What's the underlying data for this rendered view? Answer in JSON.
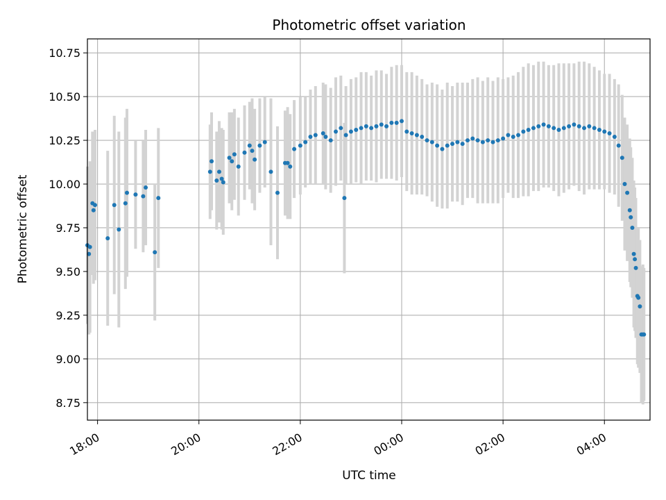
{
  "chart_data": {
    "type": "scatter",
    "title": "Photometric offset variation",
    "xlabel": "UTC time",
    "ylabel": "Photometric offset",
    "x_unit": "hours since 00:00 UTC (negative = previous day)",
    "xlim": [
      -6.2,
      4.9
    ],
    "ylim": [
      8.65,
      10.83
    ],
    "grid": true,
    "x_ticks": [
      {
        "value": -6,
        "label": "18:00"
      },
      {
        "value": -4,
        "label": "20:00"
      },
      {
        "value": -2,
        "label": "22:00"
      },
      {
        "value": 0,
        "label": "00:00"
      },
      {
        "value": 2,
        "label": "02:00"
      },
      {
        "value": 4,
        "label": "04:00"
      }
    ],
    "y_ticks": [
      {
        "value": 8.75,
        "label": "8.75"
      },
      {
        "value": 9.0,
        "label": "9.00"
      },
      {
        "value": 9.25,
        "label": "9.25"
      },
      {
        "value": 9.5,
        "label": "9.50"
      },
      {
        "value": 9.75,
        "label": "9.75"
      },
      {
        "value": 10.0,
        "label": "10.00"
      },
      {
        "value": 10.25,
        "label": "10.25"
      },
      {
        "value": 10.5,
        "label": "10.50"
      },
      {
        "value": 10.75,
        "label": "10.75"
      }
    ],
    "colors": {
      "points": "#1f77b4",
      "errorbars": "#d3d3d3",
      "grid": "#b0b0b0",
      "axes": "#000000"
    },
    "series": [
      {
        "name": "Photometric offset",
        "x": [
          -6.2,
          -6.17,
          -6.15,
          -6.1,
          -6.08,
          -6.05,
          -5.8,
          -5.67,
          -5.58,
          -5.45,
          -5.42,
          -5.25,
          -5.1,
          -5.05,
          -4.87,
          -4.8,
          -3.78,
          -3.75,
          -3.65,
          -3.6,
          -3.55,
          -3.52,
          -3.4,
          -3.35,
          -3.3,
          -3.22,
          -3.1,
          -3.0,
          -2.95,
          -2.9,
          -2.8,
          -2.7,
          -2.58,
          -2.45,
          -2.3,
          -2.25,
          -2.2,
          -2.12,
          -2.0,
          -1.9,
          -1.8,
          -1.7,
          -1.55,
          -1.5,
          -1.4,
          -1.3,
          -1.2,
          -1.13,
          -1.1,
          -1.0,
          -0.9,
          -0.8,
          -0.7,
          -0.6,
          -0.5,
          -0.4,
          -0.3,
          -0.2,
          -0.1,
          0.0,
          0.1,
          0.2,
          0.3,
          0.4,
          0.5,
          0.6,
          0.7,
          0.8,
          0.9,
          1.0,
          1.1,
          1.2,
          1.3,
          1.4,
          1.5,
          1.6,
          1.7,
          1.8,
          1.9,
          2.0,
          2.1,
          2.2,
          2.3,
          2.4,
          2.5,
          2.6,
          2.7,
          2.8,
          2.9,
          3.0,
          3.1,
          3.2,
          3.3,
          3.4,
          3.5,
          3.6,
          3.7,
          3.8,
          3.9,
          4.0,
          4.1,
          4.2,
          4.28,
          4.35,
          4.4,
          4.45,
          4.5,
          4.52,
          4.55,
          4.58,
          4.6,
          4.62,
          4.65,
          4.67,
          4.7,
          4.73,
          4.76,
          4.78
        ],
        "y": [
          9.65,
          9.6,
          9.64,
          9.89,
          9.85,
          9.88,
          9.69,
          9.88,
          9.74,
          9.89,
          9.95,
          9.94,
          9.93,
          9.98,
          9.61,
          9.92,
          10.07,
          10.13,
          10.02,
          10.07,
          10.03,
          10.01,
          10.15,
          10.13,
          10.17,
          10.1,
          10.18,
          10.22,
          10.19,
          10.14,
          10.22,
          10.24,
          10.07,
          9.95,
          10.12,
          10.12,
          10.1,
          10.2,
          10.22,
          10.24,
          10.27,
          10.28,
          10.29,
          10.27,
          10.25,
          10.3,
          10.32,
          9.92,
          10.28,
          10.3,
          10.31,
          10.32,
          10.33,
          10.32,
          10.33,
          10.34,
          10.33,
          10.35,
          10.35,
          10.36,
          10.3,
          10.29,
          10.28,
          10.27,
          10.25,
          10.24,
          10.22,
          10.2,
          10.22,
          10.23,
          10.24,
          10.23,
          10.25,
          10.26,
          10.25,
          10.24,
          10.25,
          10.24,
          10.25,
          10.26,
          10.28,
          10.27,
          10.28,
          10.3,
          10.31,
          10.32,
          10.33,
          10.34,
          10.33,
          10.32,
          10.31,
          10.32,
          10.33,
          10.34,
          10.33,
          10.32,
          10.33,
          10.32,
          10.31,
          10.3,
          10.29,
          10.27,
          10.22,
          10.15,
          10.0,
          9.95,
          9.85,
          9.81,
          9.75,
          9.6,
          9.57,
          9.52,
          9.36,
          9.35,
          9.3,
          9.14,
          9.14,
          9.14
        ],
        "err": [
          0.45,
          0.46,
          0.49,
          0.41,
          0.42,
          0.43,
          0.5,
          0.51,
          0.56,
          0.49,
          0.48,
          0.31,
          0.32,
          0.33,
          0.39,
          0.4,
          0.27,
          0.28,
          0.28,
          0.29,
          0.29,
          0.3,
          0.26,
          0.28,
          0.26,
          0.28,
          0.27,
          0.25,
          0.3,
          0.29,
          0.27,
          0.26,
          0.42,
          0.38,
          0.3,
          0.32,
          0.3,
          0.28,
          0.28,
          0.26,
          0.27,
          0.28,
          0.29,
          0.3,
          0.3,
          0.31,
          0.3,
          0.43,
          0.28,
          0.3,
          0.3,
          0.32,
          0.31,
          0.3,
          0.32,
          0.31,
          0.3,
          0.32,
          0.33,
          0.32,
          0.34,
          0.35,
          0.34,
          0.33,
          0.32,
          0.34,
          0.35,
          0.34,
          0.36,
          0.33,
          0.34,
          0.35,
          0.33,
          0.34,
          0.36,
          0.35,
          0.36,
          0.35,
          0.36,
          0.34,
          0.33,
          0.35,
          0.36,
          0.37,
          0.38,
          0.36,
          0.37,
          0.36,
          0.35,
          0.36,
          0.38,
          0.37,
          0.36,
          0.35,
          0.37,
          0.38,
          0.36,
          0.35,
          0.34,
          0.33,
          0.34,
          0.33,
          0.35,
          0.36,
          0.38,
          0.39,
          0.41,
          0.4,
          0.4,
          0.42,
          0.41,
          0.4,
          0.39,
          0.4,
          0.38,
          0.39,
          0.4,
          0.38
        ]
      }
    ]
  }
}
